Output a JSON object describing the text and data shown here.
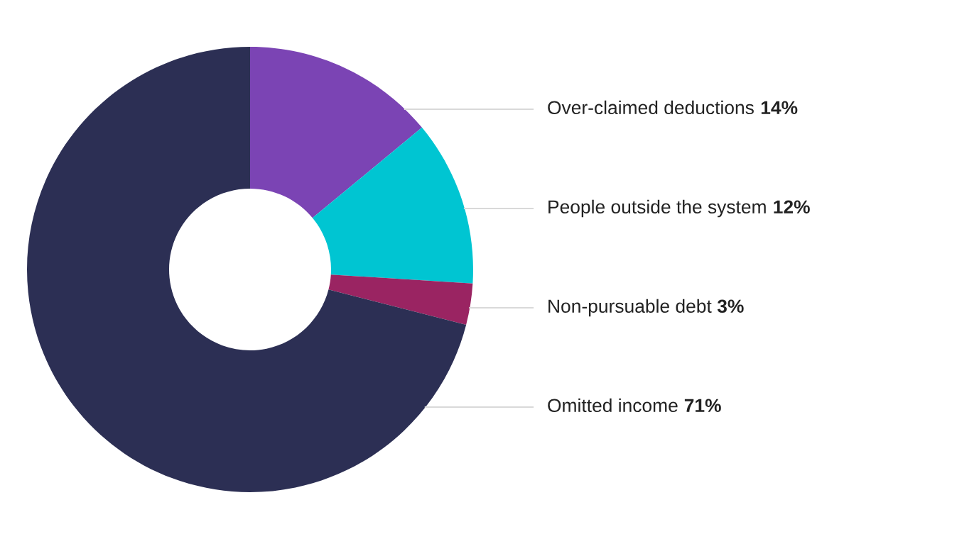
{
  "chart_data": {
    "type": "donut",
    "categories": [
      "Over-claimed deductions",
      "People outside the system",
      "Non-pursuable debt",
      "Omitted income"
    ],
    "values": [
      14,
      12,
      3,
      71
    ],
    "value_labels": [
      "14%",
      "12%",
      "3%",
      "71%"
    ],
    "colors": [
      "#7b44b4",
      "#00c5d2",
      "#9a2462",
      "#2c2f54"
    ],
    "legend": false
  }
}
